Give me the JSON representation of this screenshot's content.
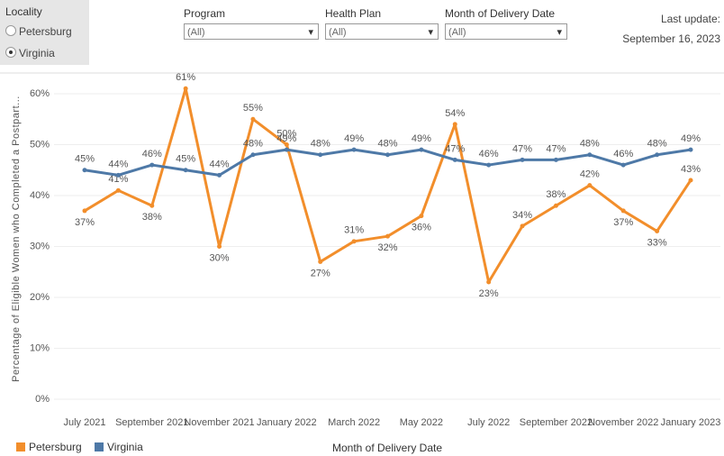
{
  "filters": {
    "locality": {
      "label": "Locality",
      "options": [
        "Petersburg",
        "Virginia"
      ],
      "selected": "Virginia"
    },
    "dropdowns": [
      {
        "label": "Program",
        "value": "(All)"
      },
      {
        "label": "Health Plan",
        "value": "(All)"
      },
      {
        "label": "Month of Delivery Date",
        "value": "(All)"
      }
    ]
  },
  "last_update": {
    "label": "Last update:",
    "date": "September 16, 2023"
  },
  "chart_data": {
    "type": "line",
    "y_label": "Percentage of Eligible Women who Completed a Postpart...",
    "x_label": "Month of Delivery Date",
    "categories": [
      "July 2021",
      null,
      "September 2021",
      null,
      "November 2021",
      null,
      "January 2022",
      null,
      "March 2022",
      null,
      "May 2022",
      null,
      "July 2022",
      null,
      "September 2022",
      null,
      "November 2022",
      null,
      "January 2023"
    ],
    "series": [
      {
        "name": "Petersburg",
        "color": "#f28e2b",
        "values": [
          37,
          41,
          38,
          61,
          30,
          55,
          50,
          27,
          31,
          32,
          36,
          54,
          23,
          34,
          38,
          42,
          37,
          33,
          43
        ],
        "value_labels": [
          "37%",
          "41%",
          "38%",
          "61%",
          "30%",
          "55%",
          "50%",
          "27%",
          "31%",
          "32%",
          "36%",
          "54%",
          "23%",
          "34%",
          "38%",
          "42%",
          "37%",
          "33%",
          "43%"
        ]
      },
      {
        "name": "Virginia",
        "color": "#4e79a7",
        "values": [
          45,
          44,
          46,
          45,
          44,
          48,
          49,
          48,
          49,
          48,
          49,
          47,
          46,
          47,
          47,
          48,
          46,
          48,
          49
        ],
        "value_labels": [
          "45%",
          "44%",
          "46%",
          "45%",
          "44%",
          "48%",
          "49%",
          "48%",
          "49%",
          "48%",
          "49%",
          "47%",
          "46%",
          "47%",
          "47%",
          "48%",
          "46%",
          "48%",
          "49%"
        ]
      }
    ],
    "ylim": [
      0,
      63
    ],
    "yticks": [
      {
        "value": 0,
        "label": "0%"
      },
      {
        "value": 10,
        "label": "10%"
      },
      {
        "value": 20,
        "label": "20%"
      },
      {
        "value": 30,
        "label": "30%"
      },
      {
        "value": 40,
        "label": "40%"
      },
      {
        "value": 50,
        "label": "50%"
      },
      {
        "value": 60,
        "label": "60%"
      }
    ],
    "grid": true
  }
}
